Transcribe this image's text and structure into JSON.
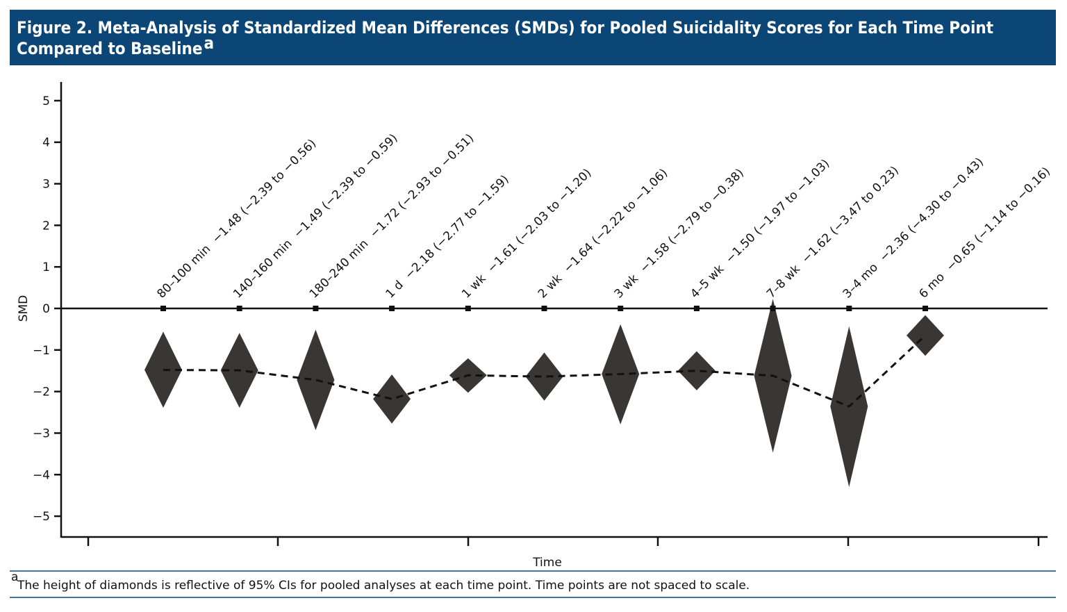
{
  "chart_data": {
    "type": "diamond",
    "title": "Figure 2. Meta-Analysis of Standardized Mean Differences (SMDs) for Pooled Suicidality Scores for Each Time Point Compared to Baseline",
    "title_note_marker": "a",
    "x_label": "Time",
    "y_label": "SMD",
    "footnote_marker": "a",
    "footnote": "The height of diamonds is reflective of 95% CIs for pooled analyses at each time point. Time points are not spaced to scale.",
    "categories": [
      "80–100 min",
      "140–160 min",
      "180–240 min",
      "1 d",
      "1 wk",
      "2 wk",
      "3 wk",
      "4–5 wk",
      "7–8 wk",
      "3–4 mo",
      "6 mo"
    ],
    "values": [
      -1.48,
      -1.49,
      -1.72,
      -2.18,
      -1.61,
      -1.64,
      -1.58,
      -1.5,
      -1.62,
      -2.36,
      -0.65
    ],
    "ci_lower": [
      -2.39,
      -2.39,
      -2.93,
      -2.77,
      -2.03,
      -2.22,
      -2.79,
      -1.97,
      -3.47,
      -4.3,
      -1.14
    ],
    "ci_upper": [
      -0.56,
      -0.59,
      -0.51,
      -1.59,
      -1.2,
      -1.06,
      -0.38,
      -1.03,
      0.23,
      -0.43,
      -0.16
    ],
    "value_labels": [
      "−1.48 (−2.39 to −0.56)",
      "−1.49 (−2.39 to −0.59)",
      "−1.72 (−2.93 to −0.51)",
      "−2.18 (−2.77 to −1.59)",
      "−1.61 (−2.03 to −1.20)",
      "−1.64 (−2.22 to −1.06)",
      "−1.58 (−2.79 to −0.38)",
      "−1.50 (−1.97 to −1.03)",
      "−1.62 (−3.47 to 0.23)",
      "−2.36 (−4.30 to −0.43)",
      "−0.65 (−1.14 to −0.16)"
    ],
    "color": "#3a3634",
    "ylim": [
      -5.5,
      5.45
    ],
    "yticks": [
      5,
      4,
      3,
      2,
      1,
      0,
      {
        "value": -1,
        "label": "−1"
      },
      {
        "value": -2,
        "label": "−2"
      },
      {
        "value": -3,
        "label": "−3"
      },
      {
        "value": -4,
        "label": "−4"
      },
      {
        "value": -5,
        "label": "−5"
      }
    ]
  }
}
